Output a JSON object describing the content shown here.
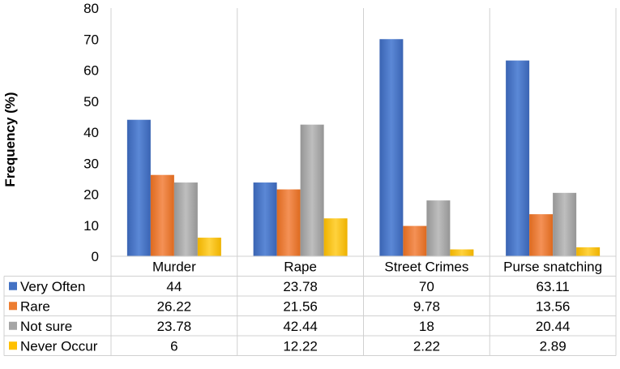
{
  "chart_data": {
    "type": "bar",
    "title": "",
    "xlabel": "",
    "ylabel": "Frequency (%)",
    "ylim": [
      0,
      80
    ],
    "yticks": [
      0,
      10,
      20,
      30,
      40,
      50,
      60,
      70,
      80
    ],
    "categories": [
      "Murder",
      "Rape",
      "Street Crimes",
      "Purse snatching"
    ],
    "series": [
      {
        "name": "Very Often",
        "color": "#4472C4",
        "values": [
          44,
          23.78,
          70,
          63.11
        ],
        "labels": [
          "44",
          "23.78",
          "70",
          "63.11"
        ]
      },
      {
        "name": "Rare",
        "color": "#ED7D31",
        "values": [
          26.22,
          21.56,
          9.78,
          13.56
        ],
        "labels": [
          "26.22",
          "21.56",
          "9.78",
          "13.56"
        ]
      },
      {
        "name": "Not sure",
        "color": "#A5A5A5",
        "values": [
          23.78,
          42.44,
          18,
          20.44
        ],
        "labels": [
          "23.78",
          "42.44",
          "18",
          "20.44"
        ]
      },
      {
        "name": "Never Occur",
        "color": "#FFC000",
        "values": [
          6,
          12.22,
          2.22,
          2.89
        ],
        "labels": [
          "6",
          "12.22",
          "2.22",
          "2.89"
        ]
      }
    ],
    "grid": false,
    "legend": "data-table"
  }
}
